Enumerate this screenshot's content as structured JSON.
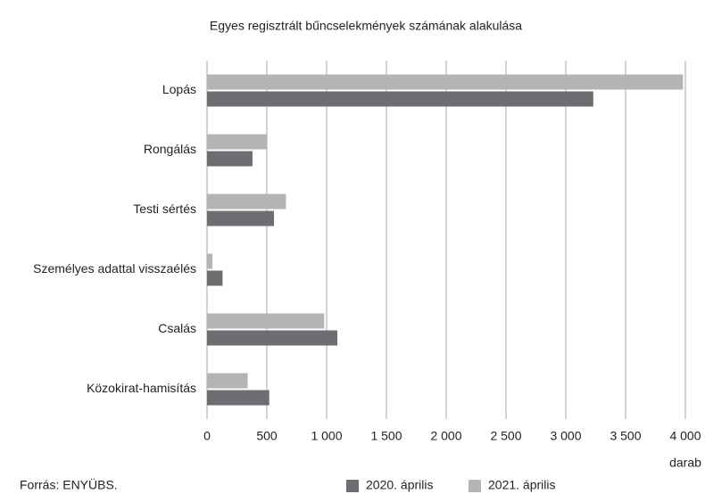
{
  "chart_data": {
    "type": "hbar",
    "title": "Egyes regisztrált bűncselekmények számának alakulása",
    "x_label": "darab",
    "source": "Forrás: ENYÜBS.",
    "categories": [
      "Lopás",
      "Rongálás",
      "Testi sértés",
      "Személyes adattal visszaélés",
      "Csalás",
      "Közokirat-hamisítás"
    ],
    "series": [
      {
        "name": "2021. április",
        "color": "#b3b4b6",
        "values": [
          3980,
          500,
          660,
          45,
          980,
          340
        ]
      },
      {
        "name": "2020. április",
        "color": "#6d6e71",
        "values": [
          3230,
          380,
          560,
          130,
          1090,
          520
        ]
      }
    ],
    "xlim": [
      0,
      4000
    ],
    "xticks": [
      0,
      500,
      {
        "value": 1000,
        "label": "1 000"
      },
      {
        "value": 1500,
        "label": "1 500"
      },
      {
        "value": 2000,
        "label": "2 000"
      },
      {
        "value": 2500,
        "label": "2 500"
      },
      {
        "value": 3000,
        "label": "3 000"
      },
      {
        "value": 3500,
        "label": "3 500"
      },
      {
        "value": 4000,
        "label": "4 000"
      }
    ],
    "grid": true,
    "legend_order": [
      1,
      0
    ]
  }
}
